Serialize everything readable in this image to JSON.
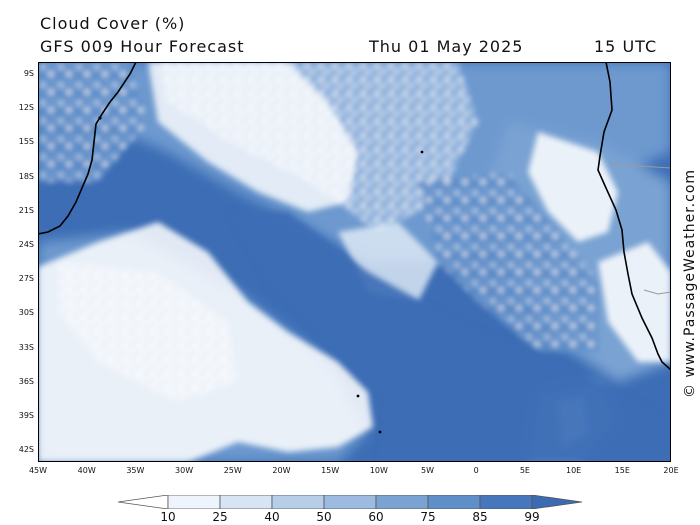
{
  "header": {
    "title": "Cloud Cover (%)",
    "model": "GFS 009 Hour Forecast",
    "date": "Thu 01 May 2025",
    "time": "15 UTC"
  },
  "credit": "© www.PassageWeather.com",
  "axes": {
    "lat_labels": [
      "9S",
      "12S",
      "15S",
      "18S",
      "21S",
      "24S",
      "27S",
      "30S",
      "33S",
      "36S",
      "39S",
      "42S"
    ],
    "lon_labels": [
      "45W",
      "40W",
      "35W",
      "30W",
      "25W",
      "20W",
      "15W",
      "10W",
      "5W",
      "0",
      "5E",
      "10E",
      "15E",
      "20E"
    ]
  },
  "legend": {
    "values": [
      "10",
      "25",
      "40",
      "50",
      "60",
      "75",
      "85",
      "99"
    ],
    "colors": [
      "#ffffff",
      "#eef4fb",
      "#d6e4f3",
      "#b7cee9",
      "#9dbbe0",
      "#7aa3d3",
      "#5f8fc9",
      "#4677bc",
      "#3a6bb3"
    ]
  },
  "colors": {
    "deep": "#3c6db5",
    "mid": "#6d99cf",
    "light": "#c9dbf0",
    "coast": "#000000",
    "border": "#9a9a9a"
  }
}
